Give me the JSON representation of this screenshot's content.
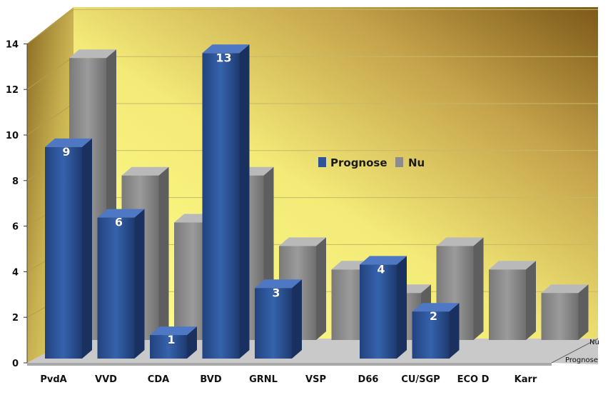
{
  "chart_data": {
    "type": "bar",
    "categories": [
      "PvdA",
      "VVD",
      "CDA",
      "BVD",
      "GRNL",
      "VSP",
      "D66",
      "CU/SGP",
      "ECO D",
      "Karr"
    ],
    "series": [
      {
        "name": "Prognose",
        "values": [
          9,
          6,
          1,
          13,
          3,
          0,
          4,
          2,
          0,
          0
        ],
        "color": "#2f5597"
      },
      {
        "name": "Nu",
        "values": [
          12,
          7,
          5,
          7,
          4,
          3,
          2,
          4,
          3,
          2
        ],
        "color": "#8c8c8c"
      }
    ],
    "data_labels": [
      "9",
      "6",
      "1",
      "13",
      "3",
      "",
      "4",
      "2",
      "",
      ""
    ],
    "ylim": [
      0,
      14
    ],
    "yticks": [
      "0",
      "2",
      "4",
      "6",
      "8",
      "10",
      "12",
      "14"
    ],
    "depth_labels": [
      "Nu",
      "Prognose"
    ],
    "legend": {
      "items": [
        "Prognose",
        "Nu"
      ],
      "placement": "center-right"
    },
    "grid": true,
    "style": "3d",
    "background_colors": [
      "#ffff80",
      "#7a5a1a"
    ]
  }
}
